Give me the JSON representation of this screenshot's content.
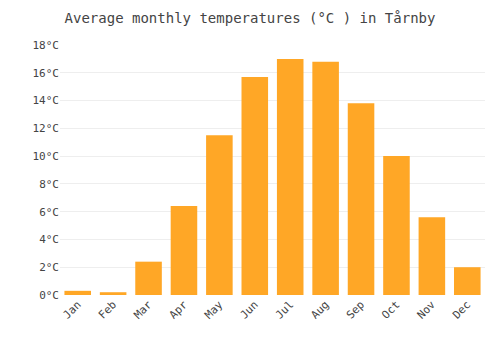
{
  "chart_data": {
    "type": "bar",
    "title": "Average monthly temperatures (°C ) in Tårnby",
    "categories": [
      "Jan",
      "Feb",
      "Mar",
      "Apr",
      "May",
      "Jun",
      "Jul",
      "Aug",
      "Sep",
      "Oct",
      "Nov",
      "Dec"
    ],
    "values": [
      0.3,
      0.2,
      2.4,
      6.4,
      11.5,
      15.7,
      17.0,
      16.8,
      13.8,
      10.0,
      5.6,
      2.0
    ],
    "color": "#FFA726",
    "ylim": [
      0,
      18
    ],
    "yticks": [
      {
        "value": 0,
        "label": "0°C"
      },
      {
        "value": 2,
        "label": "2°C"
      },
      {
        "value": 4,
        "label": "4°C"
      },
      {
        "value": 6,
        "label": "6°C"
      },
      {
        "value": 8,
        "label": "8°C"
      },
      {
        "value": 10,
        "label": "10°C"
      },
      {
        "value": 12,
        "label": "12°C"
      },
      {
        "value": 14,
        "label": "14°C"
      },
      {
        "value": 16,
        "label": "16°C"
      },
      {
        "value": 18,
        "label": "18°C"
      }
    ],
    "grid": true
  }
}
